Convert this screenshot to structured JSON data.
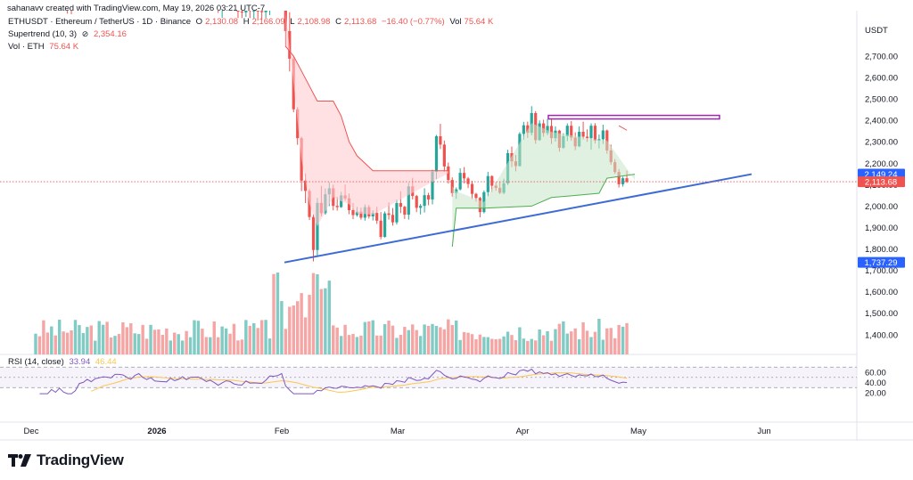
{
  "credit": "sahanavv created with TradingView.com, May 19, 2026 03:21 UTC-7",
  "header": {
    "symbol": "ETHUSDT · Ethereum / TetherUS · 1D · Binance",
    "open_label": "O",
    "open": "2,130.08",
    "high_label": "H",
    "high": "2,166.09",
    "low_label": "L",
    "low": "2,108.98",
    "close_label": "C",
    "close": "2,113.68",
    "change": "−16.40 (−0.77%)",
    "vol_label": "Vol",
    "vol": "75.64 K",
    "supertrend_label": "Supertrend (10, 3)",
    "supertrend_icon": "eye-off-icon",
    "supertrend_value": "2,354.16",
    "volume_label": "Vol · ETH",
    "volume_value": "75.64 K",
    "rsi_label": "RSI (14, close)",
    "rsi_value": "33.94",
    "rsi_ma_value": "46.44"
  },
  "logo_text": "TradingView",
  "colors": {
    "up": "#26a69a",
    "down": "#ef5350",
    "trendline": "#3d6bd6",
    "resistance": "#9c27b0",
    "supertrend_up": "#4caf50",
    "supertrend_down": "#ef5350",
    "rsi": "#7e57c2",
    "rsi_ma": "#f9c74f"
  },
  "chart_data": [
    {
      "type": "candlestick",
      "title": "ETHUSDT · Ethereum / TetherUS · 1D · Binance",
      "currency": "USDT",
      "y_ticks": [
        1400,
        1500,
        1600,
        1700,
        1800,
        1900,
        2000,
        2100,
        2200,
        2300,
        2400,
        2500,
        2600,
        2700
      ],
      "y_tick_labels": [
        "1,400.00",
        "1,500.00",
        "1,600.00",
        "1,700.00",
        "1,800.00",
        "1,900.00",
        "2,000.00",
        "2,100.00",
        "2,200.00",
        "2,300.00",
        "2,400.00",
        "2,500.00",
        "2,600.00",
        "2,700.00"
      ],
      "x_labels": [
        "Dec",
        "2026",
        "Feb",
        "Mar",
        "Apr",
        "May",
        "Jun"
      ],
      "price_tags": [
        {
          "label": "2,149.24",
          "value": 2149.24,
          "color": "#2962ff"
        },
        {
          "label": "2,113.68",
          "value": 2113.68,
          "color": "#ef5350"
        },
        {
          "label": "1,737.29",
          "value": 1737.29,
          "color": "#2962ff"
        }
      ],
      "last_price": 2113.68,
      "candles_feb_to_may": [
        [
          3001,
          3001,
          2742,
          2817
        ],
        [
          2817,
          2905,
          2628,
          2688
        ],
        [
          2688,
          2696,
          2438,
          2452
        ],
        [
          2452,
          2462,
          2286,
          2317
        ],
        [
          2317,
          2324,
          2070,
          2119
        ],
        [
          2119,
          2152,
          2014,
          2071
        ],
        [
          2071,
          2080,
          1935,
          1949
        ],
        [
          1949,
          1962,
          1742,
          1795
        ],
        [
          1795,
          2038,
          1767,
          2015
        ],
        [
          2015,
          2094,
          1953,
          1967
        ],
        [
          1967,
          2082,
          1960,
          2055
        ],
        [
          2055,
          2112,
          2000,
          2083
        ],
        [
          2083,
          2100,
          1980,
          2001
        ],
        [
          2001,
          2043,
          1979,
          1995
        ],
        [
          1995,
          2067,
          1992,
          2050
        ],
        [
          2050,
          2101,
          2026,
          2036
        ],
        [
          2036,
          2058,
          1962,
          1981
        ],
        [
          1981,
          2014,
          1939,
          1958
        ],
        [
          1958,
          1996,
          1951,
          1974
        ],
        [
          1974,
          1993,
          1937,
          1946
        ],
        [
          1946,
          2008,
          1932,
          1995
        ],
        [
          1995,
          2005,
          1942,
          1952
        ],
        [
          1952,
          1981,
          1933,
          1968
        ],
        [
          1968,
          1997,
          1917,
          1932
        ],
        [
          1932,
          1972,
          1845,
          1856
        ],
        [
          1856,
          1975,
          1853,
          1966
        ],
        [
          1966,
          2017,
          1937,
          1959
        ],
        [
          1959,
          1991,
          1909,
          1924
        ],
        [
          1924,
          2031,
          1914,
          2014
        ],
        [
          2014,
          2069,
          1967,
          1997
        ],
        [
          1997,
          2001,
          1940,
          1960
        ],
        [
          1960,
          2109,
          1937,
          2092
        ],
        [
          2092,
          2132,
          2031,
          2047
        ],
        [
          2047,
          2052,
          1972,
          1992
        ],
        [
          1992,
          2010,
          1961,
          2001
        ],
        [
          2001,
          2083,
          1970,
          2051
        ],
        [
          2051,
          2062,
          2004,
          2031
        ],
        [
          2031,
          2170,
          2008,
          2160
        ],
        [
          2160,
          2332,
          2126,
          2326
        ],
        [
          2326,
          2384,
          2266,
          2287
        ],
        [
          2287,
          2306,
          2159,
          2185
        ],
        [
          2185,
          2203,
          2105,
          2122
        ],
        [
          2122,
          2134,
          2044,
          2061
        ],
        [
          2061,
          2087,
          2034,
          2078
        ],
        [
          2078,
          2176,
          2073,
          2155
        ],
        [
          2155,
          2182,
          2106,
          2129
        ],
        [
          2129,
          2136,
          2084,
          2103
        ],
        [
          2103,
          2118,
          2033,
          2057
        ],
        [
          2057,
          2062,
          2021,
          2038
        ],
        [
          2038,
          2043,
          1948,
          1972
        ],
        [
          1972,
          2073,
          1966,
          2065
        ],
        [
          2065,
          2160,
          2045,
          2140
        ],
        [
          2140,
          2144,
          2066,
          2095
        ],
        [
          2095,
          2112,
          2072,
          2085
        ],
        [
          2085,
          2113,
          2056,
          2062
        ],
        [
          2062,
          2128,
          2055,
          2106
        ],
        [
          2106,
          2263,
          2098,
          2247
        ],
        [
          2247,
          2278,
          2182,
          2209
        ],
        [
          2209,
          2239,
          2162,
          2187
        ],
        [
          2187,
          2345,
          2185,
          2337
        ],
        [
          2337,
          2393,
          2310,
          2377
        ],
        [
          2377,
          2394,
          2318,
          2342
        ],
        [
          2342,
          2466,
          2330,
          2434
        ],
        [
          2434,
          2443,
          2291,
          2308
        ],
        [
          2308,
          2400,
          2305,
          2386
        ],
        [
          2386,
          2403,
          2324,
          2341
        ],
        [
          2341,
          2406,
          2331,
          2374
        ],
        [
          2374,
          2405,
          2290,
          2317
        ],
        [
          2317,
          2372,
          2301,
          2352
        ],
        [
          2352,
          2356,
          2254,
          2272
        ],
        [
          2272,
          2340,
          2267,
          2326
        ],
        [
          2326,
          2386,
          2303,
          2375
        ],
        [
          2375,
          2397,
          2305,
          2320
        ],
        [
          2320,
          2344,
          2261,
          2279
        ],
        [
          2279,
          2372,
          2275,
          2347
        ],
        [
          2347,
          2394,
          2311,
          2324
        ],
        [
          2324,
          2358,
          2300,
          2317
        ],
        [
          2317,
          2386,
          2263,
          2375
        ],
        [
          2375,
          2387,
          2292,
          2306
        ],
        [
          2306,
          2334,
          2269,
          2312
        ],
        [
          2312,
          2380,
          2290,
          2353
        ],
        [
          2353,
          2357,
          2244,
          2260
        ],
        [
          2260,
          2287,
          2193,
          2205
        ],
        [
          2205,
          2219,
          2150,
          2159
        ],
        [
          2159,
          2173,
          2087,
          2102
        ],
        [
          2102,
          2137,
          2091,
          2130
        ],
        [
          2130,
          2166,
          2108,
          2113
        ]
      ]
    },
    {
      "type": "bar",
      "title": "Vol · ETH",
      "unit": "K",
      "latest_value": 75.64
    },
    {
      "type": "line",
      "title": "RSI (14, close)",
      "y_ticks": [
        20,
        40,
        60
      ],
      "y_tick_labels": [
        "20.00",
        "40.00",
        "60.00"
      ],
      "bands": [
        30,
        70
      ],
      "rsi_latest": 33.94,
      "rsi_ma_latest": 46.44
    }
  ]
}
